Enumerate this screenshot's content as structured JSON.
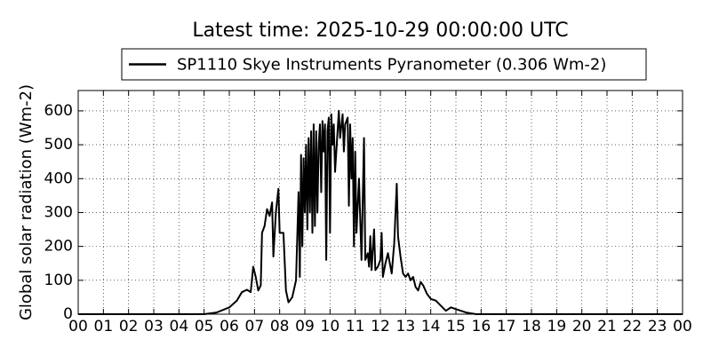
{
  "chart_data": {
    "type": "line",
    "title": "Latest time: 2025-10-29 00:00:00 UTC",
    "y_label": "Global solar radiation (Wm-2)",
    "legend": "upper center",
    "grid": true,
    "xlim": [
      0,
      24
    ],
    "ylim": [
      0,
      660
    ],
    "xticks": [
      {
        "value": 0,
        "label": "00"
      },
      {
        "value": 1,
        "label": "01"
      },
      {
        "value": 2,
        "label": "02"
      },
      {
        "value": 3,
        "label": "03"
      },
      {
        "value": 4,
        "label": "04"
      },
      {
        "value": 5,
        "label": "05"
      },
      {
        "value": 6,
        "label": "06"
      },
      {
        "value": 7,
        "label": "07"
      },
      {
        "value": 8,
        "label": "08"
      },
      {
        "value": 9,
        "label": "09"
      },
      {
        "value": 10,
        "label": "10"
      },
      {
        "value": 11,
        "label": "11"
      },
      {
        "value": 12,
        "label": "12"
      },
      {
        "value": 13,
        "label": "13"
      },
      {
        "value": 14,
        "label": "14"
      },
      {
        "value": 15,
        "label": "15"
      },
      {
        "value": 16,
        "label": "16"
      },
      {
        "value": 17,
        "label": "17"
      },
      {
        "value": 18,
        "label": "18"
      },
      {
        "value": 19,
        "label": "19"
      },
      {
        "value": 20,
        "label": "20"
      },
      {
        "value": 21,
        "label": "21"
      },
      {
        "value": 22,
        "label": "22"
      },
      {
        "value": 23,
        "label": "23"
      },
      {
        "value": 24,
        "label": "00"
      }
    ],
    "yticks": [
      0,
      100,
      200,
      300,
      400,
      500,
      600
    ],
    "x": [
      0,
      5,
      5.5,
      6,
      6.3,
      6.5,
      6.7,
      6.85,
      6.95,
      7.05,
      7.15,
      7.25,
      7.3,
      7.4,
      7.5,
      7.6,
      7.7,
      7.75,
      7.85,
      7.95,
      8.0,
      8.15,
      8.25,
      8.35,
      8.5,
      8.65,
      8.75,
      8.8,
      8.85,
      8.9,
      8.95,
      9.0,
      9.05,
      9.1,
      9.15,
      9.2,
      9.25,
      9.3,
      9.35,
      9.4,
      9.45,
      9.5,
      9.55,
      9.6,
      9.65,
      9.7,
      9.75,
      9.8,
      9.85,
      9.9,
      9.95,
      10.0,
      10.05,
      10.1,
      10.15,
      10.2,
      10.3,
      10.35,
      10.4,
      10.5,
      10.55,
      10.6,
      10.7,
      10.75,
      10.8,
      10.85,
      10.9,
      10.95,
      11.0,
      11.05,
      11.15,
      11.25,
      11.35,
      11.4,
      11.5,
      11.55,
      11.6,
      11.65,
      11.75,
      11.8,
      11.9,
      12.0,
      12.05,
      12.1,
      12.2,
      12.3,
      12.45,
      12.55,
      12.65,
      12.7,
      12.8,
      12.9,
      13.0,
      13.1,
      13.2,
      13.3,
      13.4,
      13.5,
      13.6,
      13.7,
      13.85,
      14.0,
      14.2,
      14.4,
      14.6,
      14.8,
      15.0,
      15.2,
      15.4,
      15.8,
      24
    ],
    "series": [
      {
        "name": "SP1110 Skye Instruments Pyranometer (0.306 Wm-2)",
        "color": "#000000",
        "values": [
          0,
          0,
          5,
          20,
          40,
          65,
          72,
          65,
          140,
          110,
          70,
          85,
          240,
          260,
          310,
          290,
          330,
          170,
          300,
          370,
          240,
          240,
          70,
          35,
          50,
          100,
          360,
          110,
          470,
          200,
          460,
          300,
          500,
          250,
          520,
          300,
          540,
          240,
          560,
          260,
          540,
          300,
          500,
          560,
          360,
          570,
          480,
          560,
          160,
          540,
          580,
          240,
          590,
          500,
          560,
          420,
          540,
          600,
          520,
          590,
          480,
          560,
          580,
          320,
          560,
          400,
          520,
          200,
          480,
          240,
          400,
          160,
          520,
          160,
          180,
          140,
          230,
          130,
          250,
          130,
          140,
          160,
          240,
          110,
          150,
          180,
          120,
          210,
          385,
          230,
          170,
          120,
          110,
          120,
          100,
          110,
          80,
          70,
          95,
          85,
          60,
          45,
          40,
          25,
          10,
          20,
          15,
          10,
          5,
          0,
          0
        ]
      }
    ]
  }
}
